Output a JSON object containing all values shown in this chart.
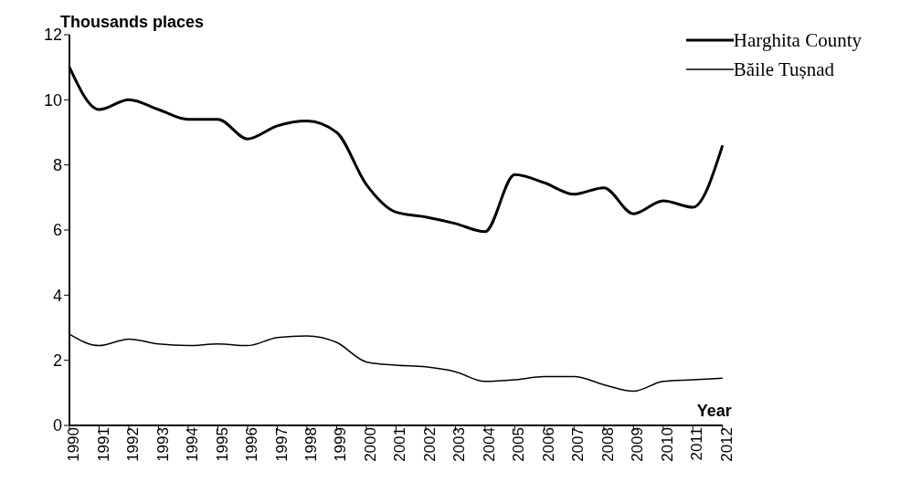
{
  "chart_data": {
    "type": "line",
    "ylabel": "Thousands places",
    "xlabel": "Year",
    "categories": [
      "1990",
      "1991",
      "1992",
      "1993",
      "1994",
      "1995",
      "1996",
      "1997",
      "1998",
      "1999",
      "2000",
      "2001",
      "2002",
      "2003",
      "2004",
      "2005",
      "2006",
      "2007",
      "2008",
      "2009",
      "2010",
      "2011",
      "2012"
    ],
    "series": [
      {
        "name": "Harghita County",
        "color": "#000000",
        "values": [
          11.0,
          9.7,
          10.0,
          9.7,
          9.4,
          9.4,
          8.8,
          9.2,
          9.35,
          9.0,
          7.4,
          6.55,
          6.4,
          6.2,
          5.95,
          7.7,
          7.45,
          7.1,
          7.3,
          6.5,
          6.9,
          6.7,
          8.6
        ]
      },
      {
        "name": "Băile Tușnad",
        "color": "#000000",
        "values": [
          2.8,
          2.45,
          2.65,
          2.5,
          2.45,
          2.5,
          2.45,
          2.7,
          2.75,
          2.55,
          1.95,
          1.85,
          1.8,
          1.65,
          1.35,
          1.4,
          1.5,
          1.5,
          1.25,
          1.05,
          1.35,
          1.4,
          1.45
        ]
      }
    ],
    "ylim": [
      0,
      12
    ],
    "yticks": [
      0,
      2,
      4,
      6,
      8,
      10,
      12
    ],
    "grid": false,
    "legend": "top right",
    "marker": "none",
    "line_style": "solid"
  }
}
